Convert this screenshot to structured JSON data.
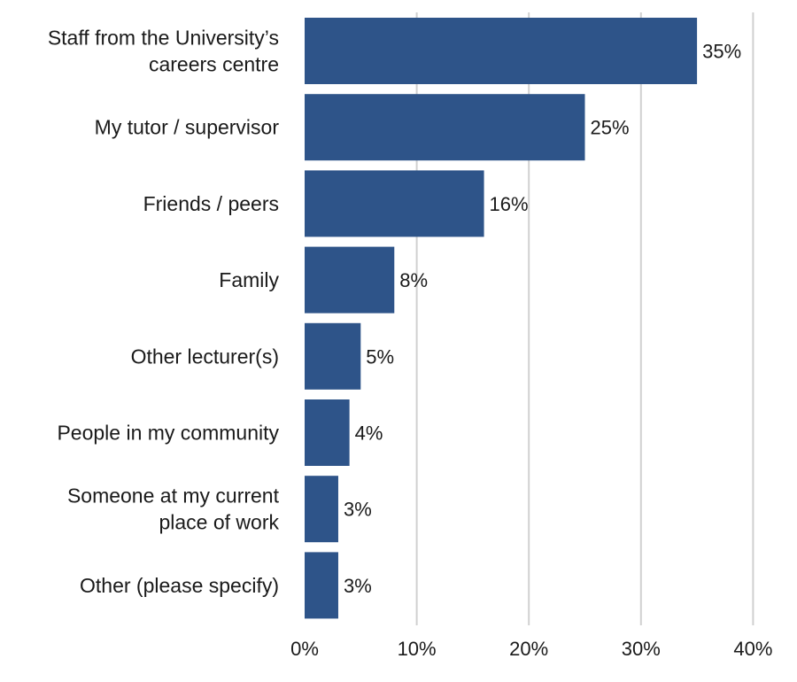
{
  "chart_data": {
    "type": "bar",
    "orientation": "horizontal",
    "categories": [
      "Staff from the University’s careers centre",
      "My tutor / supervisor",
      "Friends / peers",
      "Family",
      "Other lecturer(s)",
      "People in my community",
      "Someone at my current place of work",
      "Other (please specify)"
    ],
    "category_lines": [
      [
        "Staff from the University’s",
        "careers centre"
      ],
      [
        "My tutor / supervisor"
      ],
      [
        "Friends / peers"
      ],
      [
        "Family"
      ],
      [
        "Other lecturer(s)"
      ],
      [
        "People in my community"
      ],
      [
        "Someone at my current",
        "place of work"
      ],
      [
        "Other (please specify)"
      ]
    ],
    "values": [
      35,
      25,
      16,
      8,
      5,
      4,
      3,
      3
    ],
    "data_labels": [
      "35%",
      "25%",
      "16%",
      "8%",
      "5%",
      "4%",
      "3%",
      "3%"
    ],
    "xlim": [
      0,
      40
    ],
    "xticks": [
      0,
      10,
      20,
      30,
      40
    ],
    "xtick_labels": [
      "0%",
      "10%",
      "20%",
      "30%",
      "40%"
    ],
    "grid": "vertical",
    "legend": "none",
    "bar_color": "#2e5489",
    "grid_color": "#d0d0d0",
    "title": "",
    "xlabel": "",
    "ylabel": ""
  }
}
